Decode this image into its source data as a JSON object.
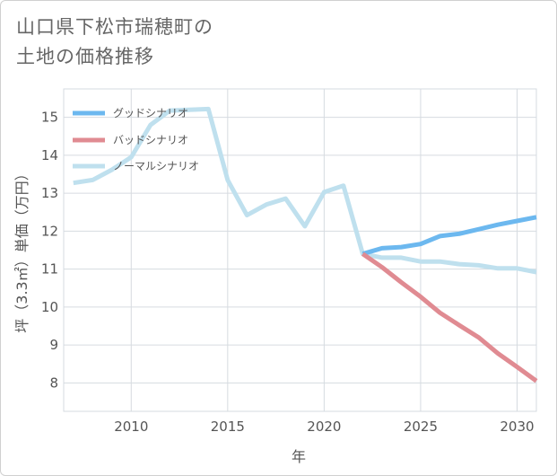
{
  "title": {
    "line1": "山口県下松市瑞穂町の",
    "line2": "土地の価格推移"
  },
  "chart_data": {
    "type": "line",
    "xlabel": "年",
    "ylabel": "坪（3.3㎡）単価（万円）",
    "xlim": [
      2006.5,
      2031
    ],
    "ylim": [
      7.25,
      15.75
    ],
    "x_ticks": [
      2010,
      2015,
      2020,
      2025,
      2030
    ],
    "y_ticks": [
      8,
      9,
      10,
      11,
      12,
      13,
      14,
      15
    ],
    "grid": true,
    "legend_position": "top-left",
    "series": [
      {
        "name": "グッドシナリオ",
        "color": "#6cb8ef",
        "x": [
          2022,
          2023,
          2024,
          2025,
          2026,
          2027,
          2028,
          2029,
          2030,
          2031
        ],
        "values": [
          11.4,
          11.55,
          11.58,
          11.66,
          11.87,
          11.93,
          12.05,
          12.17,
          12.27,
          12.37
        ]
      },
      {
        "name": "バッドシナリオ",
        "color": "#e08b92",
        "x": [
          2022,
          2023,
          2024,
          2025,
          2026,
          2027,
          2028,
          2029,
          2030,
          2031
        ],
        "values": [
          11.4,
          11.05,
          10.65,
          10.27,
          9.85,
          9.52,
          9.2,
          8.78,
          8.42,
          8.05
        ]
      },
      {
        "name": "ノーマルシナリオ",
        "color": "#bfe0ee",
        "x": [
          2007,
          2008,
          2009,
          2010,
          2011,
          2012,
          2013,
          2014,
          2015,
          2016,
          2017,
          2018,
          2019,
          2020,
          2021,
          2022,
          2023,
          2024,
          2025,
          2026,
          2027,
          2028,
          2029,
          2030,
          2031
        ],
        "values": [
          13.27,
          13.35,
          13.62,
          13.95,
          14.8,
          15.18,
          15.2,
          15.22,
          13.35,
          12.42,
          12.7,
          12.86,
          12.13,
          13.03,
          13.2,
          11.4,
          11.3,
          11.3,
          11.2,
          11.2,
          11.13,
          11.1,
          11.02,
          11.02,
          10.92
        ]
      }
    ]
  }
}
